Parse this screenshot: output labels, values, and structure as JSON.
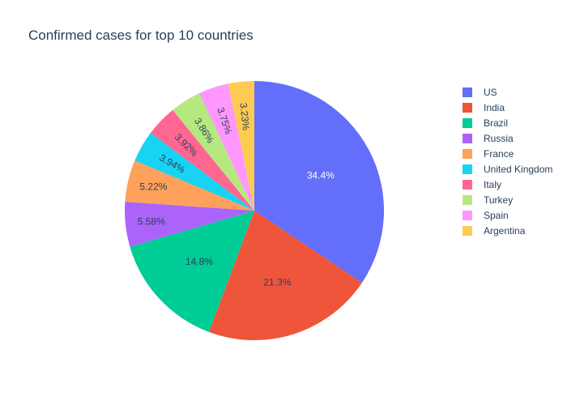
{
  "chart_data": {
    "type": "pie",
    "title": "Confirmed cases for top 10 countries",
    "slices": [
      {
        "label": "US",
        "percent": 34.4,
        "percent_text": "34.4%",
        "color": "#636efa",
        "text_color": "#ffffff"
      },
      {
        "label": "India",
        "percent": 21.3,
        "percent_text": "21.3%",
        "color": "#EF553B",
        "text_color": "#2a3f5f"
      },
      {
        "label": "Brazil",
        "percent": 14.8,
        "percent_text": "14.8%",
        "color": "#00cc96",
        "text_color": "#2a3f5f"
      },
      {
        "label": "Russia",
        "percent": 5.58,
        "percent_text": "5.58%",
        "color": "#ab63fa",
        "text_color": "#2a3f5f"
      },
      {
        "label": "France",
        "percent": 5.22,
        "percent_text": "5.22%",
        "color": "#FFA15A",
        "text_color": "#2a3f5f"
      },
      {
        "label": "United Kingdom",
        "percent": 3.94,
        "percent_text": "3.94%",
        "color": "#19d3f3",
        "text_color": "#2a3f5f"
      },
      {
        "label": "Italy",
        "percent": 3.92,
        "percent_text": "3.92%",
        "color": "#FF6692",
        "text_color": "#2a3f5f"
      },
      {
        "label": "Turkey",
        "percent": 3.86,
        "percent_text": "3.86%",
        "color": "#B6E880",
        "text_color": "#2a3f5f"
      },
      {
        "label": "Spain",
        "percent": 3.75,
        "percent_text": "3.75%",
        "color": "#FF97FF",
        "text_color": "#2a3f5f"
      },
      {
        "label": "Argentina",
        "percent": 3.23,
        "percent_text": "3.23%",
        "color": "#FECB52",
        "text_color": "#2a3f5f"
      }
    ],
    "direction": "clockwise",
    "start": "top",
    "legend_placement": "right"
  }
}
